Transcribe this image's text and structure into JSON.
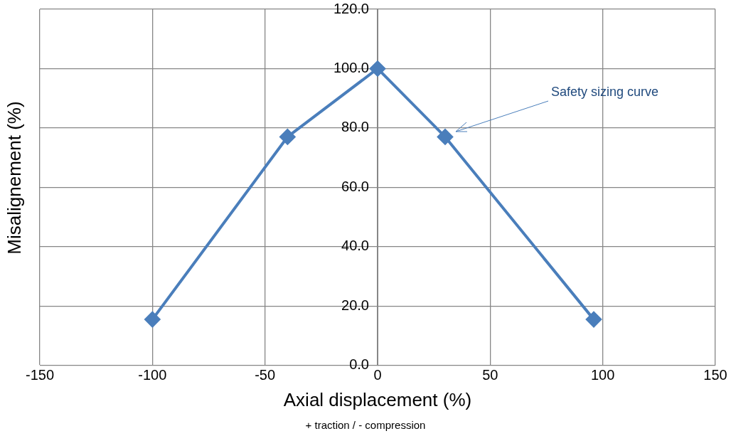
{
  "chart_data": {
    "type": "line",
    "xlabel": "Axial displacement (%)",
    "ylabel": "Misalignement (%)",
    "x": [
      -100,
      -40,
      0,
      30,
      96
    ],
    "series": [
      {
        "color": "#4a7ebb",
        "values": [
          15.5,
          77,
          100,
          77,
          15.5
        ]
      }
    ],
    "xlim": [
      -150,
      150
    ],
    "xticks": [
      -150,
      -100,
      -50,
      0,
      50,
      100,
      150
    ],
    "ylim": [
      0,
      120
    ],
    "yticks": [
      {
        "value": 0,
        "label": "0.0"
      },
      {
        "value": 20,
        "label": "20.0"
      },
      {
        "value": 40,
        "label": "40.0"
      },
      {
        "value": 60,
        "label": "60.0"
      },
      {
        "value": 80,
        "label": "80.0"
      },
      {
        "value": 100,
        "label": "100.0"
      },
      {
        "value": 120,
        "label": "120.0"
      }
    ],
    "grid": true,
    "legend": false,
    "marker": "diamond",
    "line_style": "solid",
    "annotations": [
      "Safety sizing curve",
      "+ traction / - compression"
    ]
  }
}
